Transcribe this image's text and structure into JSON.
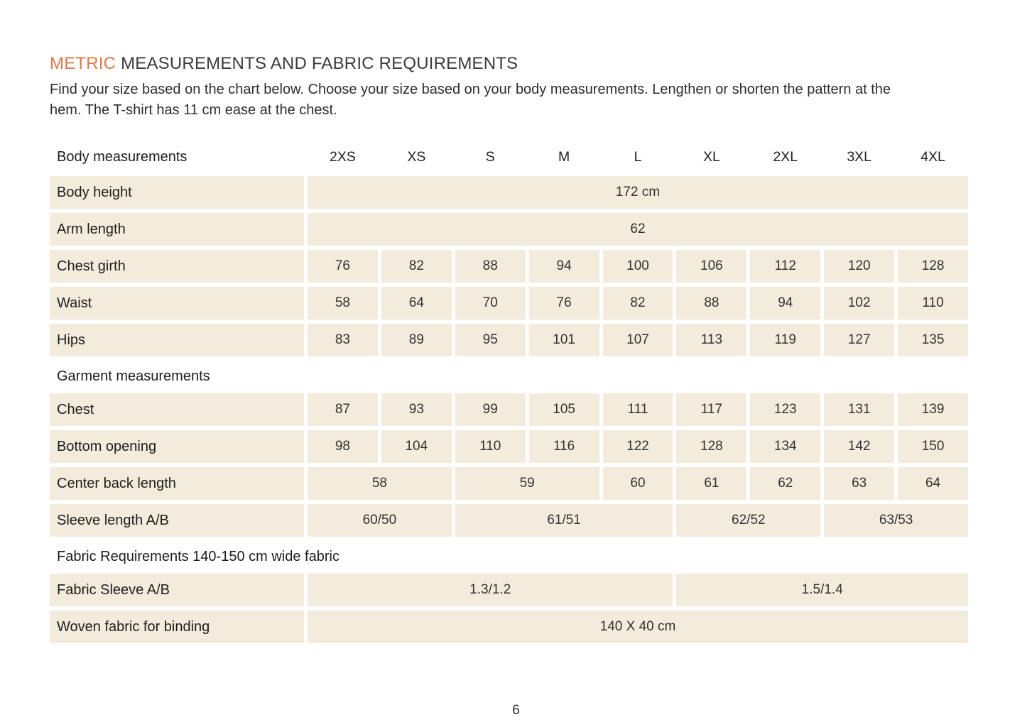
{
  "page": {
    "title_highlight": "METRIC",
    "title_rest": " MEASUREMENTS AND FABRIC REQUIREMENTS",
    "intro": "Find your size based on the chart below. Choose your size based on your body measurements.  Lengthen or shorten the pattern at the hem. The T-shirt has 11 cm ease at the chest.",
    "page_number": "6"
  },
  "colors": {
    "accent_orange": "#e0794a",
    "cell_beige": "#f3ebdb",
    "title_dark": "#3b3b3b"
  },
  "table": {
    "header_label": "Body measurements",
    "sizes": [
      "2XS",
      "XS",
      "S",
      "M",
      "L",
      "XL",
      "2XL",
      "3XL",
      "4XL"
    ],
    "sections": [
      {
        "heading": null,
        "rows": [
          {
            "label": "Body height",
            "cells": [
              {
                "value": "172 cm",
                "span": 9
              }
            ]
          },
          {
            "label": "Arm length",
            "cells": [
              {
                "value": "62",
                "span": 9
              }
            ]
          },
          {
            "label": "Chest girth",
            "cells": [
              {
                "value": "76",
                "span": 1
              },
              {
                "value": "82",
                "span": 1
              },
              {
                "value": "88",
                "span": 1
              },
              {
                "value": "94",
                "span": 1
              },
              {
                "value": "100",
                "span": 1
              },
              {
                "value": "106",
                "span": 1
              },
              {
                "value": "112",
                "span": 1
              },
              {
                "value": "120",
                "span": 1
              },
              {
                "value": "128",
                "span": 1
              }
            ]
          },
          {
            "label": "Waist",
            "cells": [
              {
                "value": "58",
                "span": 1
              },
              {
                "value": "64",
                "span": 1
              },
              {
                "value": "70",
                "span": 1
              },
              {
                "value": "76",
                "span": 1
              },
              {
                "value": "82",
                "span": 1
              },
              {
                "value": "88",
                "span": 1
              },
              {
                "value": "94",
                "span": 1
              },
              {
                "value": "102",
                "span": 1
              },
              {
                "value": "110",
                "span": 1
              }
            ]
          },
          {
            "label": "Hips",
            "cells": [
              {
                "value": "83",
                "span": 1
              },
              {
                "value": "89",
                "span": 1
              },
              {
                "value": "95",
                "span": 1
              },
              {
                "value": "101",
                "span": 1
              },
              {
                "value": "107",
                "span": 1
              },
              {
                "value": "113",
                "span": 1
              },
              {
                "value": "119",
                "span": 1
              },
              {
                "value": "127",
                "span": 1
              },
              {
                "value": "135",
                "span": 1
              }
            ]
          }
        ]
      },
      {
        "heading": "Garment measurements",
        "rows": [
          {
            "label": "Chest",
            "cells": [
              {
                "value": "87",
                "span": 1
              },
              {
                "value": "93",
                "span": 1
              },
              {
                "value": "99",
                "span": 1
              },
              {
                "value": "105",
                "span": 1
              },
              {
                "value": "111",
                "span": 1
              },
              {
                "value": "117",
                "span": 1
              },
              {
                "value": "123",
                "span": 1
              },
              {
                "value": "131",
                "span": 1
              },
              {
                "value": "139",
                "span": 1
              }
            ]
          },
          {
            "label": "Bottom opening",
            "cells": [
              {
                "value": "98",
                "span": 1
              },
              {
                "value": "104",
                "span": 1
              },
              {
                "value": "110",
                "span": 1
              },
              {
                "value": "116",
                "span": 1
              },
              {
                "value": "122",
                "span": 1
              },
              {
                "value": "128",
                "span": 1
              },
              {
                "value": "134",
                "span": 1
              },
              {
                "value": "142",
                "span": 1
              },
              {
                "value": "150",
                "span": 1
              }
            ]
          },
          {
            "label": "Center back length",
            "cells": [
              {
                "value": "58",
                "span": 2
              },
              {
                "value": "59",
                "span": 2
              },
              {
                "value": "60",
                "span": 1
              },
              {
                "value": "61",
                "span": 1
              },
              {
                "value": "62",
                "span": 1
              },
              {
                "value": "63",
                "span": 1
              },
              {
                "value": "64",
                "span": 1
              }
            ]
          },
          {
            "label": "Sleeve length A/B",
            "cells": [
              {
                "value": "60/50",
                "span": 2
              },
              {
                "value": "61/51",
                "span": 3
              },
              {
                "value": "62/52",
                "span": 2
              },
              {
                "value": "63/53",
                "span": 2
              }
            ]
          }
        ]
      },
      {
        "heading": "Fabric Requirements 140-150 cm wide fabric",
        "rows": [
          {
            "label": "Fabric Sleeve A/B",
            "cells": [
              {
                "value": "1.3/1.2",
                "span": 5
              },
              {
                "value": "1.5/1.4",
                "span": 4
              }
            ]
          },
          {
            "label": "Woven fabric for binding",
            "cells": [
              {
                "value": "140 X 40 cm",
                "span": 9
              }
            ]
          }
        ]
      }
    ]
  }
}
